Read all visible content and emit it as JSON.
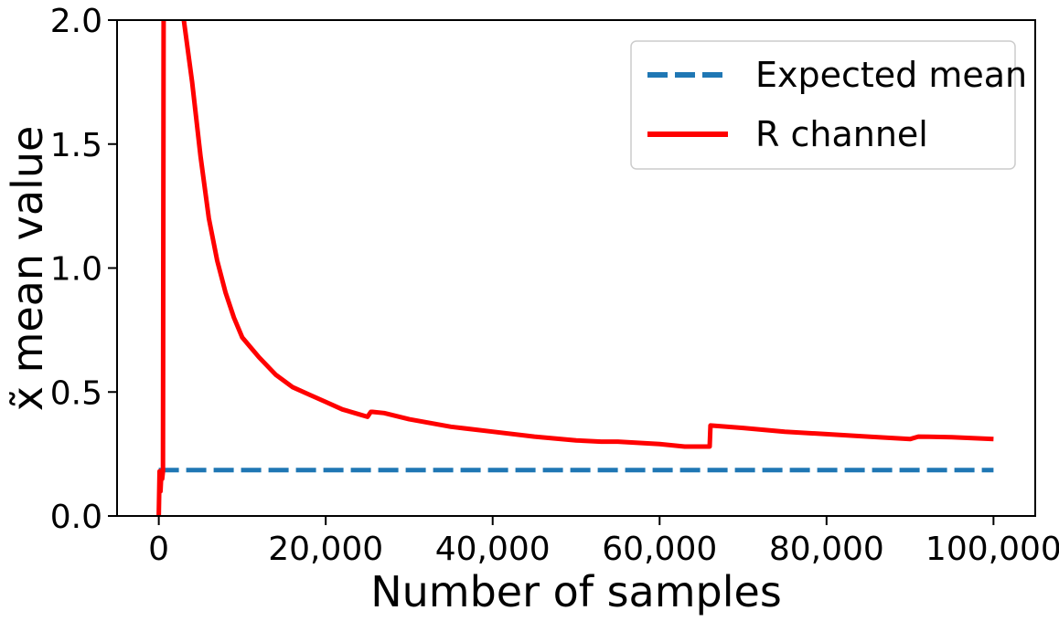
{
  "chart_data": {
    "type": "line",
    "title": "",
    "xlabel": "Number of samples",
    "ylabel": "x̃ mean value",
    "xlim": [
      -5000,
      105000
    ],
    "ylim": [
      0,
      2.0
    ],
    "x_ticks": [
      0,
      20000,
      40000,
      60000,
      80000,
      100000
    ],
    "x_tick_labels": [
      "0",
      "20,000",
      "40,000",
      "60,000",
      "80,000",
      "100,000"
    ],
    "y_ticks": [
      0,
      0.5,
      1.0,
      1.5,
      2.0
    ],
    "y_tick_labels": [
      "0.0",
      "0.5",
      "1.0",
      "1.5",
      "2.0"
    ],
    "grid": false,
    "legend_position": "top-right",
    "series": [
      {
        "name": "Expected mean",
        "style": "dashed",
        "color": "#1f77b4",
        "x": [
          0,
          100000
        ],
        "y": [
          0.185,
          0.185
        ]
      },
      {
        "name": "R channel",
        "style": "solid",
        "color": "#ff0000",
        "x": [
          0,
          100,
          200,
          300,
          400,
          500,
          600,
          700,
          3000,
          4000,
          5000,
          6000,
          7000,
          8000,
          9000,
          10000,
          12000,
          14000,
          16000,
          18000,
          20000,
          22000,
          24000,
          25000,
          25400,
          25600,
          27000,
          30000,
          35000,
          40000,
          45000,
          50000,
          53000,
          55000,
          60000,
          63000,
          66000,
          66100,
          70000,
          75000,
          80000,
          85000,
          90000,
          91000,
          95000,
          100000
        ],
        "y": [
          0.0,
          0.18,
          0.1,
          0.17,
          0.15,
          0.18,
          2.5,
          2.5,
          2.0,
          1.75,
          1.45,
          1.2,
          1.03,
          0.9,
          0.8,
          0.72,
          0.64,
          0.57,
          0.52,
          0.49,
          0.46,
          0.43,
          0.41,
          0.4,
          0.42,
          0.42,
          0.415,
          0.39,
          0.36,
          0.34,
          0.32,
          0.305,
          0.3,
          0.3,
          0.29,
          0.28,
          0.28,
          0.365,
          0.355,
          0.34,
          0.33,
          0.32,
          0.31,
          0.32,
          0.318,
          0.31
        ]
      }
    ]
  }
}
